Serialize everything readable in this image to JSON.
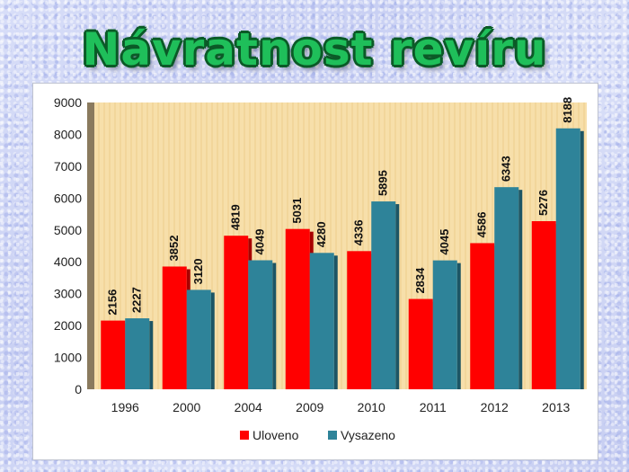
{
  "title": "Návratnost revíru",
  "chart_data": {
    "type": "bar",
    "categories": [
      "1996",
      "2000",
      "2004",
      "2009",
      "2010",
      "2011",
      "2012",
      "2013"
    ],
    "series": [
      {
        "name": "Uloveno",
        "color": "#ff0000",
        "values": [
          2156,
          3852,
          4819,
          5031,
          4336,
          2834,
          4586,
          5276
        ]
      },
      {
        "name": "Vysazeno",
        "color": "#2e8399",
        "values": [
          2227,
          3120,
          4049,
          4280,
          5895,
          4045,
          6343,
          8188
        ]
      }
    ],
    "yticks": [
      "0",
      "1000",
      "2000",
      "3000",
      "4000",
      "5000",
      "6000",
      "7000",
      "8000",
      "9000"
    ],
    "ylim": [
      0,
      9000
    ],
    "legend": "bottom",
    "plot_background": "#f7dfaa"
  }
}
